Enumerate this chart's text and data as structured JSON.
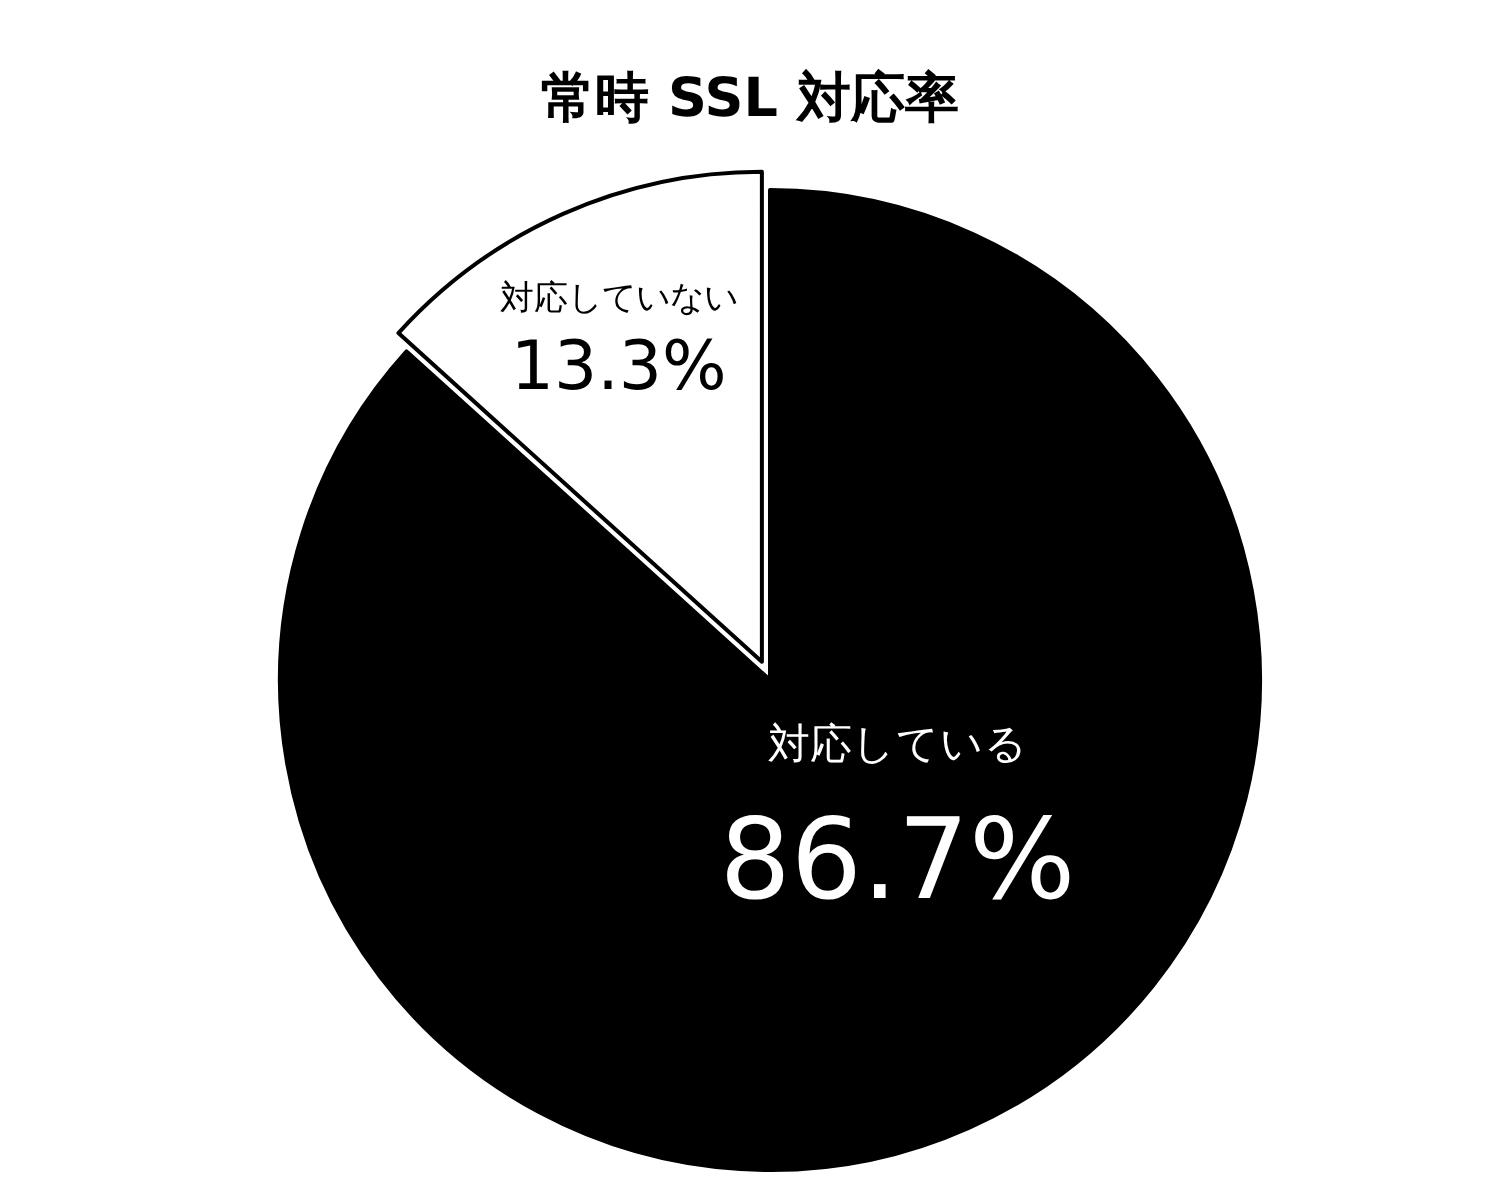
{
  "chart_data": {
    "type": "pie",
    "title": "常時 SSL 対応率",
    "categories": [
      "対応している",
      "対応していない"
    ],
    "values": [
      86.7,
      13.3
    ],
    "colors": [
      "#000000",
      "#ffffff"
    ],
    "value_labels": [
      "86.7%",
      "13.3%"
    ]
  }
}
